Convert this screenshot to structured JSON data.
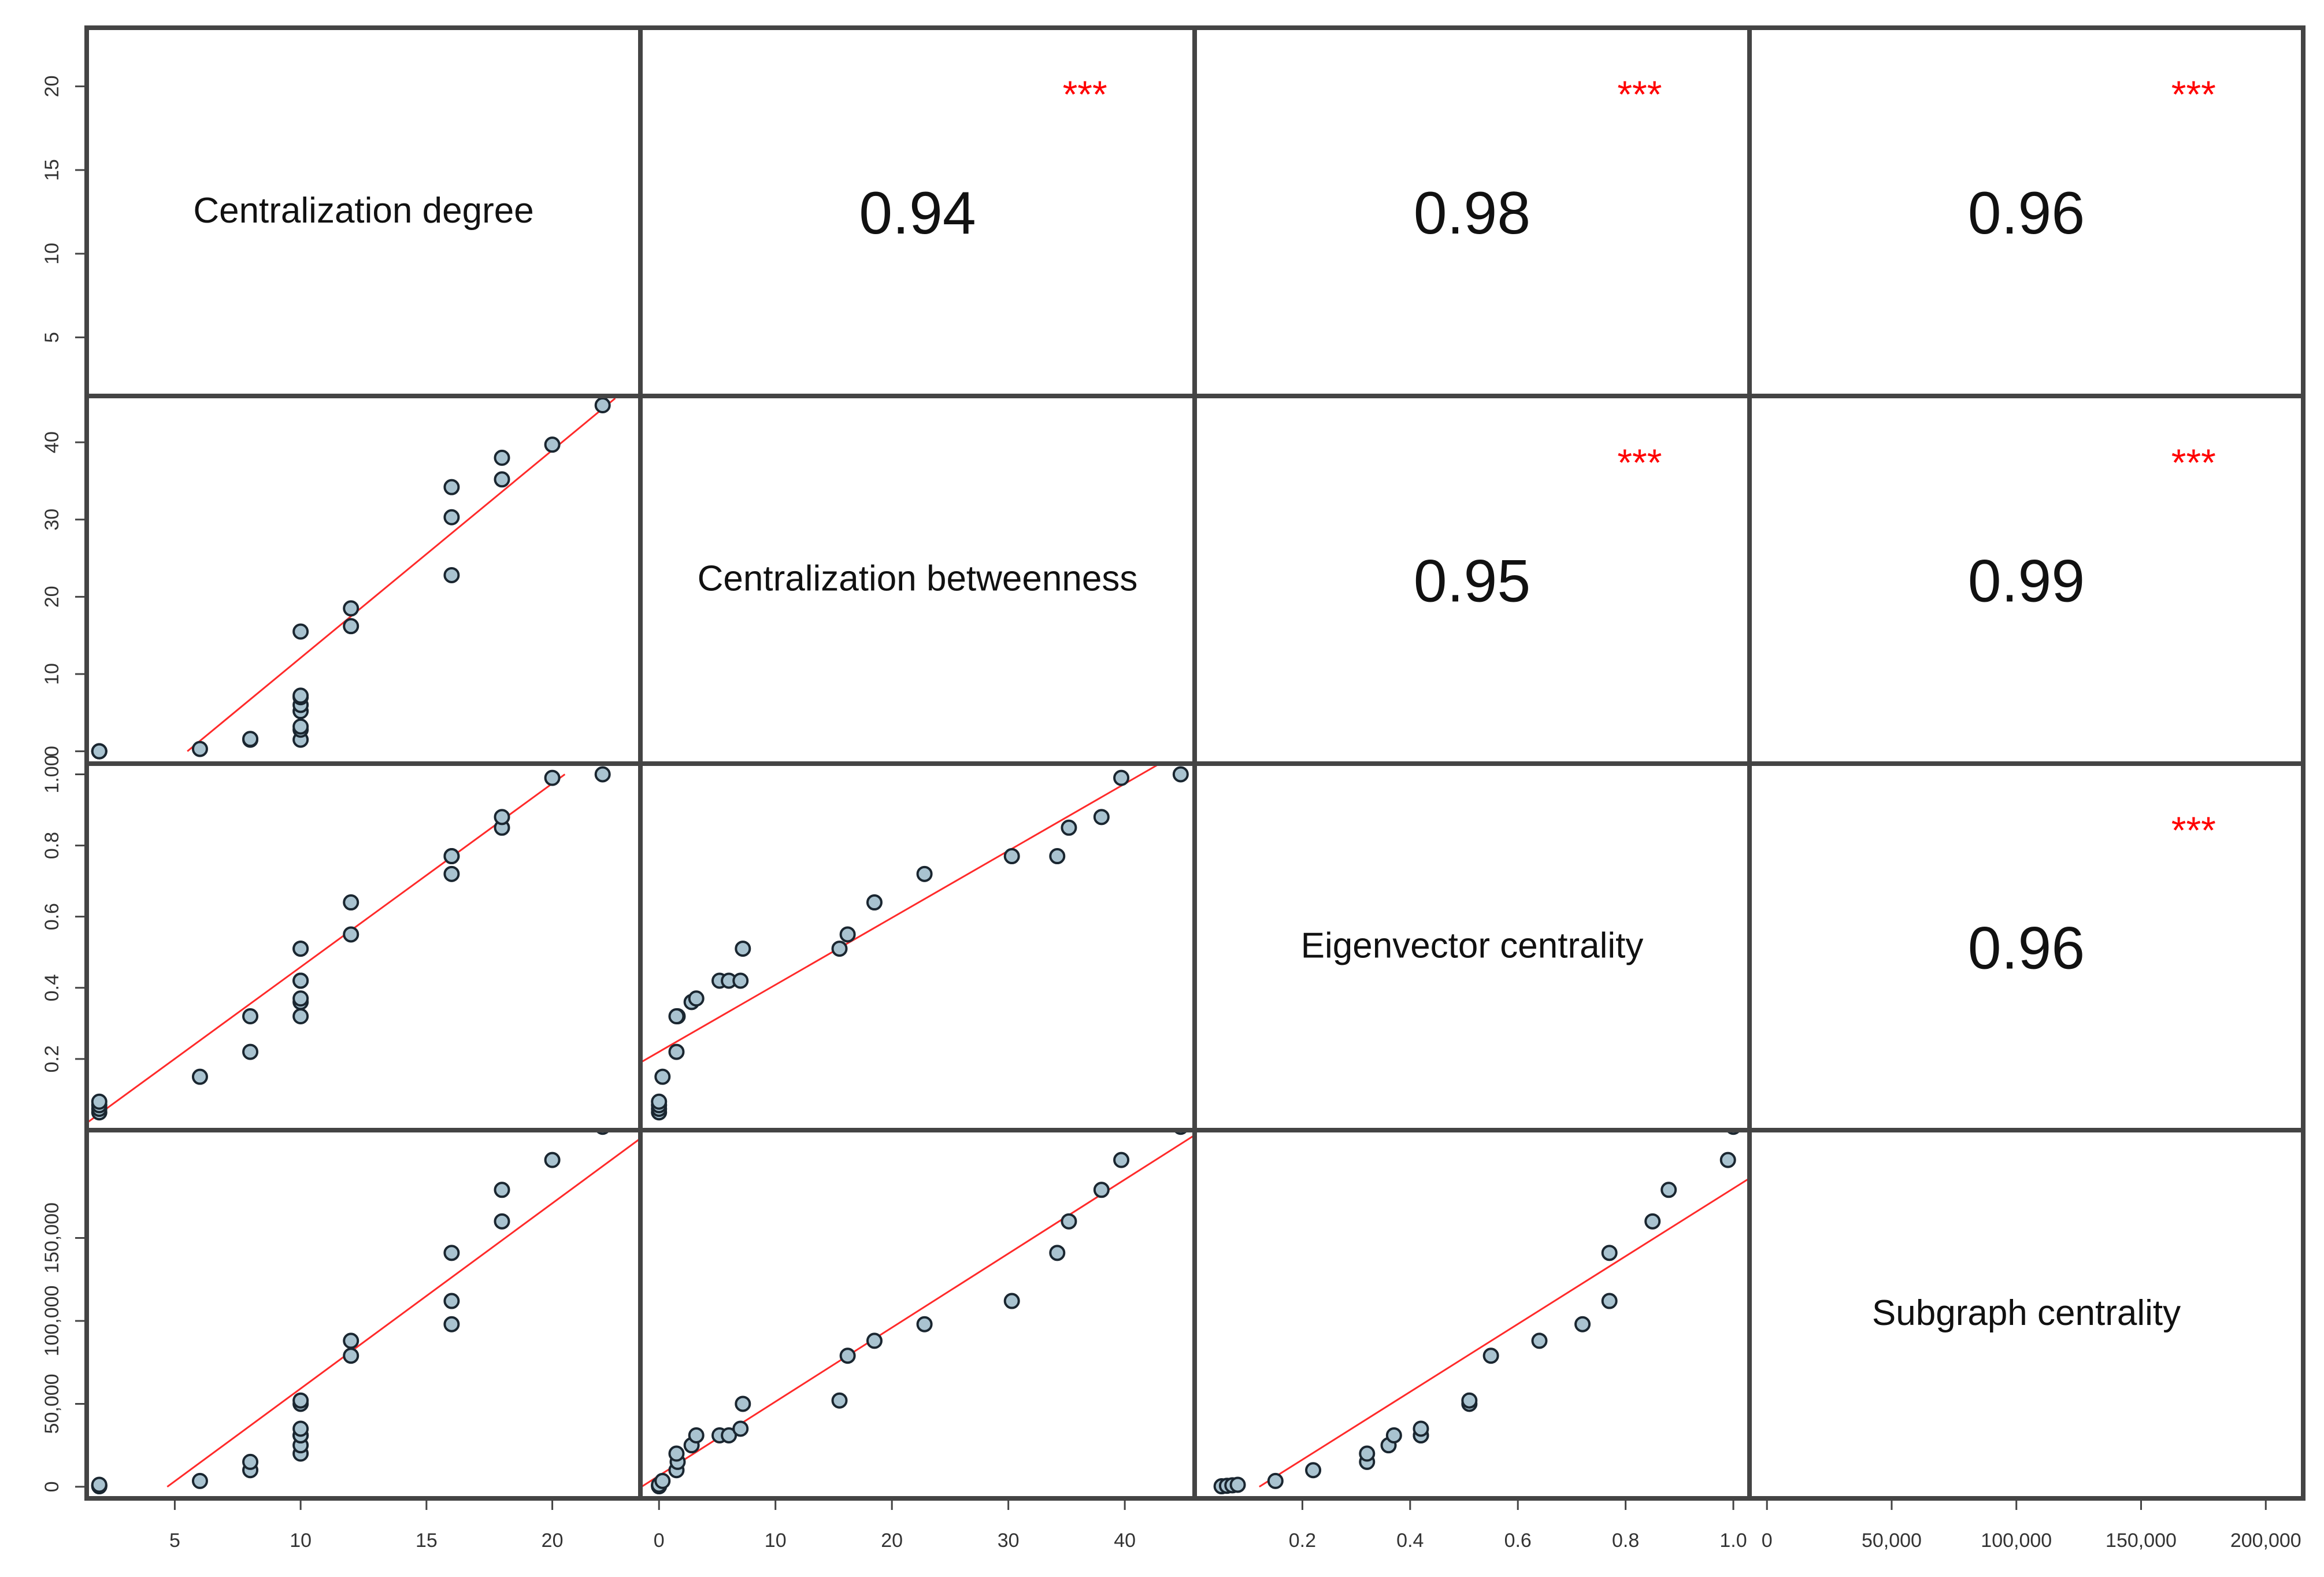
{
  "chart_data": {
    "type": "scatter",
    "variables": [
      {
        "name": "degree",
        "label": "Centralization degree",
        "lim": [
          1.5,
          23.5
        ],
        "ticks": [
          5,
          10,
          15,
          20
        ],
        "tick_labels": [
          "5",
          "10",
          "15",
          "20"
        ]
      },
      {
        "name": "betweenness",
        "label": "Centralization betweenness",
        "lim": [
          -1.6,
          46
        ],
        "ticks": [
          0,
          10,
          20,
          30,
          40
        ],
        "tick_labels": [
          "0",
          "10",
          "20",
          "30",
          "40"
        ]
      },
      {
        "name": "eigenvector",
        "label": "Eigenvector centrality",
        "lim": [
          0.0,
          1.03
        ],
        "ticks": [
          0.2,
          0.4,
          0.6,
          0.8,
          1.0
        ],
        "tick_labels": [
          "0.2",
          "0.4",
          "0.6",
          "0.8",
          "1.0"
        ]
      },
      {
        "name": "subgraph",
        "label": "Subgraph centrality",
        "lim": [
          -7000,
          215000
        ],
        "ticks": [
          0,
          50000,
          100000,
          150000,
          200000
        ],
        "tick_labels": [
          "0",
          "50,000",
          "100,000",
          "150,000",
          "200,000"
        ]
      }
    ],
    "row_axis_ticks": [
      {
        "ticks": [
          5,
          10,
          15,
          20
        ],
        "tick_labels": [
          "5",
          "10",
          "15",
          "20"
        ]
      },
      {
        "ticks": [
          0,
          10,
          20,
          30,
          40
        ],
        "tick_labels": [
          "0",
          "10",
          "20",
          "30",
          "40"
        ]
      },
      {
        "ticks": [
          0.2,
          0.4,
          0.6,
          0.8,
          1.0
        ],
        "tick_labels": [
          "0.2",
          "0.4",
          "0.6",
          "0.8",
          "1.00"
        ]
      },
      {
        "ticks": [
          0,
          50000,
          100000,
          150000
        ],
        "tick_labels": [
          "0",
          "50,000",
          "100,000",
          "150,000"
        ]
      }
    ],
    "correlations": [
      {
        "row": 0,
        "col": 1,
        "value": "0.94",
        "stars": "***"
      },
      {
        "row": 0,
        "col": 2,
        "value": "0.98",
        "stars": "***"
      },
      {
        "row": 0,
        "col": 3,
        "value": "0.96",
        "stars": "***"
      },
      {
        "row": 1,
        "col": 2,
        "value": "0.95",
        "stars": "***"
      },
      {
        "row": 1,
        "col": 3,
        "value": "0.99",
        "stars": "***"
      },
      {
        "row": 2,
        "col": 3,
        "value": "0.96",
        "stars": "***"
      }
    ],
    "observations": [
      {
        "degree": 2,
        "betweenness": 0,
        "eigenvector": 0.05,
        "subgraph": 300
      },
      {
        "degree": 2,
        "betweenness": 0,
        "eigenvector": 0.06,
        "subgraph": 600
      },
      {
        "degree": 2,
        "betweenness": 0,
        "eigenvector": 0.07,
        "subgraph": 900
      },
      {
        "degree": 2,
        "betweenness": 0,
        "eigenvector": 0.08,
        "subgraph": 1200
      },
      {
        "degree": 6,
        "betweenness": 0.3,
        "eigenvector": 0.15,
        "subgraph": 3500
      },
      {
        "degree": 8,
        "betweenness": 1.5,
        "eigenvector": 0.22,
        "subgraph": 10000
      },
      {
        "degree": 8,
        "betweenness": 1.6,
        "eigenvector": 0.32,
        "subgraph": 15000
      },
      {
        "degree": 10,
        "betweenness": 1.5,
        "eigenvector": 0.32,
        "subgraph": 20000
      },
      {
        "degree": 10,
        "betweenness": 2.8,
        "eigenvector": 0.36,
        "subgraph": 25000
      },
      {
        "degree": 10,
        "betweenness": 3.2,
        "eigenvector": 0.37,
        "subgraph": 31000
      },
      {
        "degree": 10,
        "betweenness": 5.2,
        "eigenvector": 0.42,
        "subgraph": 31000
      },
      {
        "degree": 10,
        "betweenness": 6.0,
        "eigenvector": 0.42,
        "subgraph": 31000
      },
      {
        "degree": 10,
        "betweenness": 7.0,
        "eigenvector": 0.42,
        "subgraph": 35000
      },
      {
        "degree": 10,
        "betweenness": 7.2,
        "eigenvector": 0.51,
        "subgraph": 50000
      },
      {
        "degree": 10,
        "betweenness": 15.5,
        "eigenvector": 0.51,
        "subgraph": 52000
      },
      {
        "degree": 12,
        "betweenness": 16.2,
        "eigenvector": 0.55,
        "subgraph": 79000
      },
      {
        "degree": 12,
        "betweenness": 18.5,
        "eigenvector": 0.64,
        "subgraph": 88000
      },
      {
        "degree": 16,
        "betweenness": 22.8,
        "eigenvector": 0.72,
        "subgraph": 98000
      },
      {
        "degree": 16,
        "betweenness": 30.3,
        "eigenvector": 0.77,
        "subgraph": 112000
      },
      {
        "degree": 16,
        "betweenness": 34.2,
        "eigenvector": 0.77,
        "subgraph": 141000
      },
      {
        "degree": 18,
        "betweenness": 35.2,
        "eigenvector": 0.85,
        "subgraph": 160000
      },
      {
        "degree": 18,
        "betweenness": 38.0,
        "eigenvector": 0.88,
        "subgraph": 179000
      },
      {
        "degree": 20,
        "betweenness": 39.7,
        "eigenvector": 0.99,
        "subgraph": 197000
      },
      {
        "degree": 22,
        "betweenness": 44.8,
        "eigenvector": 1.0,
        "subgraph": 217000
      }
    ],
    "fit_lines": [
      {
        "row": 1,
        "col": 0,
        "p1": [
          5.5,
          0
        ],
        "p2": [
          22.5,
          45.7
        ]
      },
      {
        "row": 2,
        "col": 0,
        "p1": [
          1.5,
          0.02
        ],
        "p2": [
          20.5,
          1.0
        ]
      },
      {
        "row": 2,
        "col": 1,
        "p1": [
          -1.6,
          0.19
        ],
        "p2": [
          43,
          1.03
        ]
      },
      {
        "row": 3,
        "col": 0,
        "p1": [
          4.7,
          0
        ],
        "p2": [
          23.5,
          210000
        ]
      },
      {
        "row": 3,
        "col": 1,
        "p1": [
          -1.5,
          0
        ],
        "p2": [
          46,
          212000
        ]
      },
      {
        "row": 3,
        "col": 2,
        "p1": [
          0.12,
          0
        ],
        "p2": [
          1.03,
          186000
        ]
      }
    ],
    "grid": false
  }
}
